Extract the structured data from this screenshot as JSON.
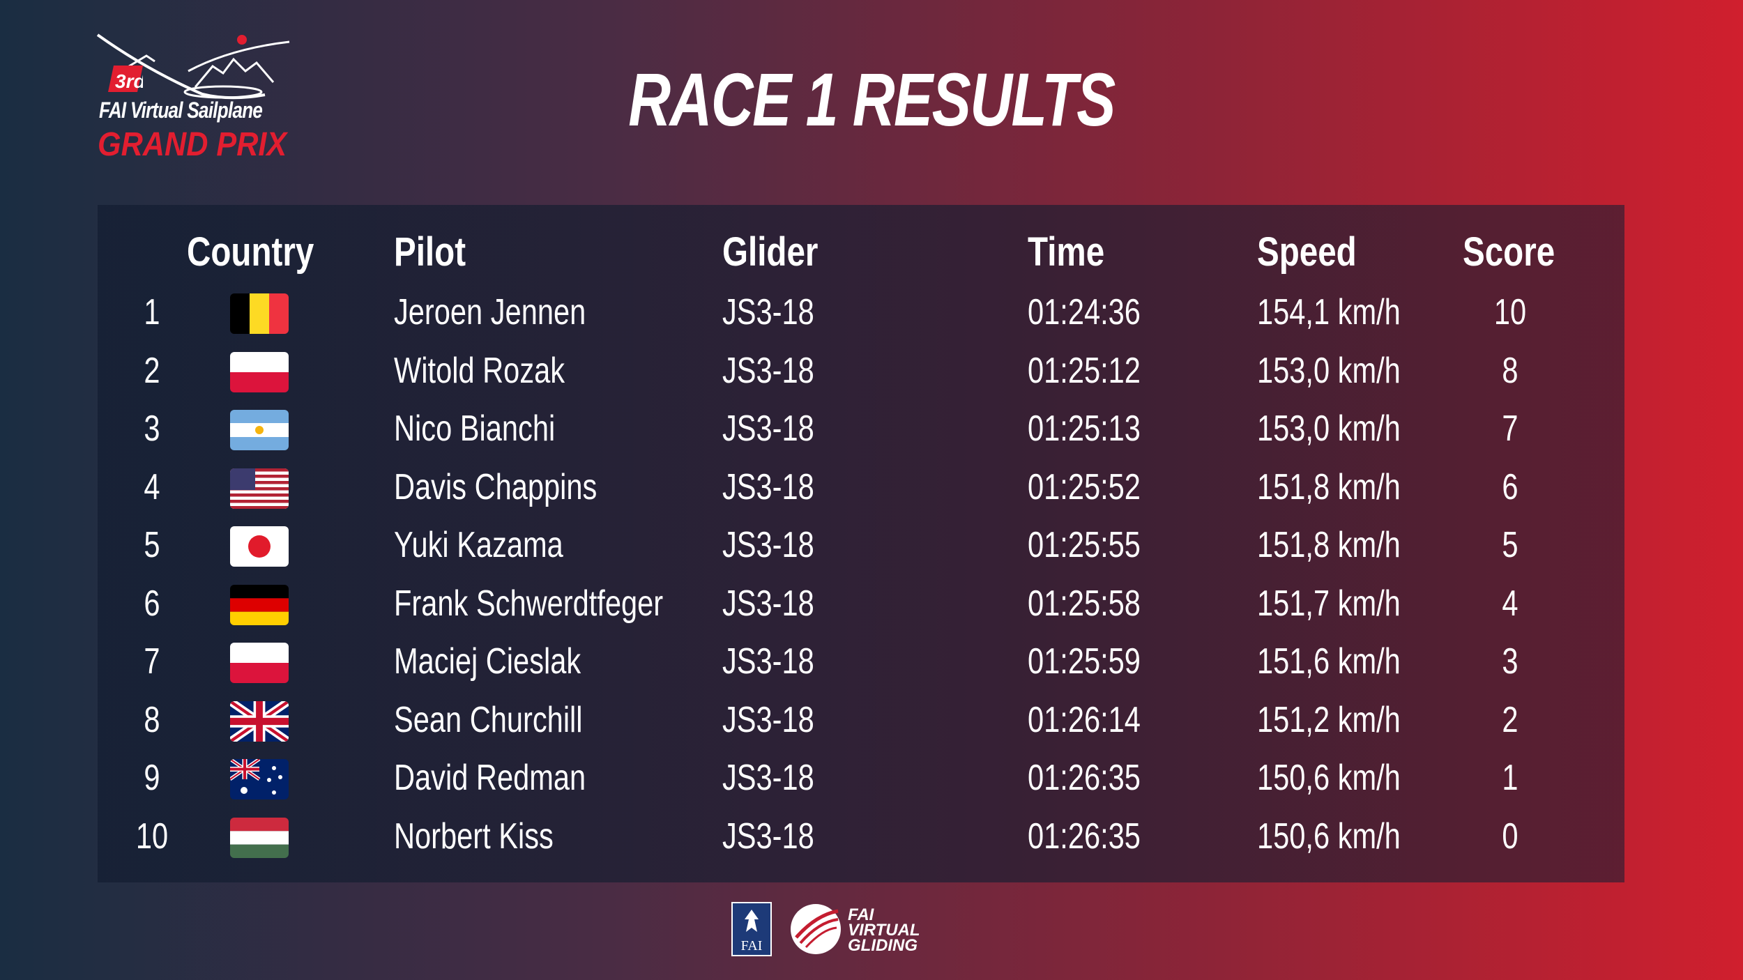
{
  "logo": {
    "edition": "3rd",
    "line1": "FAI Virtual Sailplane",
    "line2": "GRAND PRIX"
  },
  "title": "RACE 1 RESULTS",
  "table": {
    "headers": {
      "country": "Country",
      "pilot": "Pilot",
      "glider": "Glider",
      "time": "Time",
      "speed": "Speed",
      "score": "Score"
    },
    "rows": [
      {
        "rank": "1",
        "flag": "belgium-flag-icon",
        "pilot": "Jeroen Jennen",
        "glider": "JS3-18",
        "time": "01:24:36",
        "speed": "154,1 km/h",
        "score": "10"
      },
      {
        "rank": "2",
        "flag": "poland-flag-icon",
        "pilot": "Witold Rozak",
        "glider": "JS3-18",
        "time": "01:25:12",
        "speed": "153,0 km/h",
        "score": "8"
      },
      {
        "rank": "3",
        "flag": "argentina-flag-icon",
        "pilot": "Nico Bianchi",
        "glider": "JS3-18",
        "time": "01:25:13",
        "speed": "153,0 km/h",
        "score": "7"
      },
      {
        "rank": "4",
        "flag": "usa-flag-icon",
        "pilot": "Davis Chappins",
        "glider": "JS3-18",
        "time": "01:25:52",
        "speed": "151,8 km/h",
        "score": "6"
      },
      {
        "rank": "5",
        "flag": "japan-flag-icon",
        "pilot": "Yuki Kazama",
        "glider": "JS3-18",
        "time": "01:25:55",
        "speed": "151,8 km/h",
        "score": "5"
      },
      {
        "rank": "6",
        "flag": "germany-flag-icon",
        "pilot": "Frank Schwerdtfeger",
        "glider": "JS3-18",
        "time": "01:25:58",
        "speed": "151,7 km/h",
        "score": "4"
      },
      {
        "rank": "7",
        "flag": "poland-flag-icon",
        "pilot": "Maciej Cieslak",
        "glider": "JS3-18",
        "time": "01:25:59",
        "speed": "151,6 km/h",
        "score": "3"
      },
      {
        "rank": "8",
        "flag": "uk-flag-icon",
        "pilot": "Sean Churchill",
        "glider": "JS3-18",
        "time": "01:26:14",
        "speed": "151,2 km/h",
        "score": "2"
      },
      {
        "rank": "9",
        "flag": "australia-flag-icon",
        "pilot": "David Redman",
        "glider": "JS3-18",
        "time": "01:26:35",
        "speed": "150,6 km/h",
        "score": "1"
      },
      {
        "rank": "10",
        "flag": "hungary-flag-icon",
        "pilot": "Norbert Kiss",
        "glider": "JS3-18",
        "time": "01:26:35",
        "speed": "150,6 km/h",
        "score": "0"
      }
    ]
  },
  "footer": {
    "fai_label": "FAI",
    "brand_lines": [
      "FAI",
      "VIRTUAL",
      "GLIDING"
    ]
  },
  "colors": {
    "accent_red": "#e21e30",
    "background_left": "#1a2d42",
    "background_right": "#d01f2e"
  }
}
